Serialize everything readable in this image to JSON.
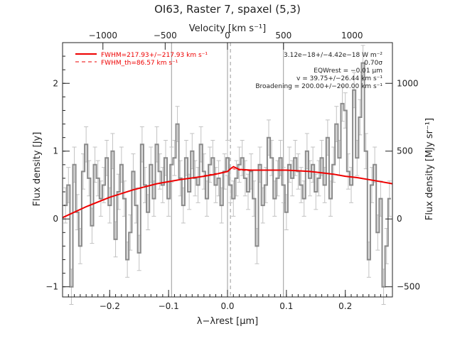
{
  "chart_data": {
    "type": "line",
    "title": "OI63, Raster 7, spaxel (5,3)",
    "xlabel": "λ−λrest [μm]",
    "ylabel": "Flux density [Jy]",
    "top_xlabel": "Velocity [km s⁻¹]",
    "right_ylabel": "Flux density [MJy sr⁻¹]",
    "xlim": [
      -0.28,
      0.28
    ],
    "ylim": [
      -1.15,
      2.6
    ],
    "xticks": [
      -0.2,
      -0.1,
      0.0,
      0.1,
      0.2
    ],
    "xtick_labels": [
      "−0.2",
      "−0.1",
      "0.0",
      "0.1",
      "0.2"
    ],
    "yticks": [
      -1,
      0,
      1,
      2
    ],
    "ytick_labels": [
      "−1",
      "0",
      "1",
      "2"
    ],
    "top_ticks_um": [
      -0.2115,
      -0.1058,
      0.0,
      0.0951
    ],
    "top_tick_labels": [
      "−1000",
      "−500",
      "0",
      "500",
      "1000"
    ],
    "top_tick_label_positions_um": [
      -0.2115,
      -0.1058,
      0.0,
      0.0951,
      0.2115
    ],
    "right_ticks_jy": [
      -1.0,
      0.0,
      1.0,
      2.0
    ],
    "right_tick_labels": [
      "−500",
      "0",
      "500",
      "1000"
    ],
    "vlines_solid_um": [
      -0.095,
      0.0,
      0.095
    ],
    "vline_dashed_um": 0.005,
    "legend": [
      {
        "label": "FWHM=217.93+/−217.93 km s⁻¹",
        "style": "solid"
      },
      {
        "label": "FWHM_th=86.57 km s⁻¹",
        "style": "dashed"
      }
    ],
    "annotations": [
      "3.12e−18+/−4.42e−18 W m⁻²",
      "0.70σ",
      "EQWrest = −0.01 μm",
      "v = 39.75+/−26.44 km s⁻¹",
      "Broadening = 200.00+/−200.00 km s⁻¹"
    ],
    "colors": {
      "data": "#8a8a8a",
      "errors": "#c2c2c2",
      "fit": "#ee0000",
      "axes": "#222222"
    },
    "series": [
      {
        "name": "",
        "style": "histogram",
        "x": [
          -0.275,
          -0.27,
          -0.265,
          -0.26,
          -0.255,
          -0.25,
          -0.245,
          -0.24,
          -0.235,
          -0.23,
          -0.225,
          -0.22,
          -0.215,
          -0.21,
          -0.205,
          -0.2,
          -0.195,
          -0.19,
          -0.185,
          -0.18,
          -0.175,
          -0.17,
          -0.165,
          -0.16,
          -0.155,
          -0.15,
          -0.145,
          -0.14,
          -0.135,
          -0.13,
          -0.125,
          -0.12,
          -0.115,
          -0.11,
          -0.105,
          -0.1,
          -0.095,
          -0.09,
          -0.085,
          -0.08,
          -0.075,
          -0.07,
          -0.065,
          -0.06,
          -0.055,
          -0.05,
          -0.045,
          -0.04,
          -0.035,
          -0.03,
          -0.025,
          -0.02,
          -0.015,
          -0.01,
          -0.005,
          0.0,
          0.005,
          0.01,
          0.015,
          0.02,
          0.025,
          0.03,
          0.035,
          0.04,
          0.045,
          0.05,
          0.055,
          0.06,
          0.065,
          0.07,
          0.075,
          0.08,
          0.085,
          0.09,
          0.095,
          0.1,
          0.105,
          0.11,
          0.115,
          0.12,
          0.125,
          0.13,
          0.135,
          0.14,
          0.145,
          0.15,
          0.155,
          0.16,
          0.165,
          0.17,
          0.175,
          0.18,
          0.185,
          0.19,
          0.195,
          0.2,
          0.205,
          0.21,
          0.215,
          0.22,
          0.225,
          0.23,
          0.235,
          0.24,
          0.245,
          0.25,
          0.255,
          0.26,
          0.265,
          0.27,
          0.275
        ],
        "y": [
          0.2,
          0.5,
          -1.0,
          0.8,
          0.1,
          -0.4,
          0.7,
          1.1,
          0.6,
          -0.1,
          0.8,
          0.6,
          0.3,
          0.5,
          0.9,
          0.2,
          1.0,
          -0.3,
          0.4,
          0.8,
          0.3,
          -0.6,
          -0.2,
          0.7,
          0.2,
          -0.5,
          1.1,
          0.5,
          0.1,
          0.8,
          0.3,
          1.1,
          0.7,
          0.5,
          0.9,
          0.3,
          0.8,
          0.9,
          1.4,
          0.6,
          0.2,
          0.9,
          0.4,
          1.0,
          0.6,
          0.5,
          1.1,
          0.7,
          0.3,
          0.8,
          0.9,
          0.5,
          0.6,
          0.2,
          0.7,
          0.9,
          0.5,
          0.3,
          0.6,
          0.8,
          0.9,
          0.6,
          0.4,
          0.7,
          0.3,
          -0.4,
          0.8,
          0.2,
          0.5,
          1.2,
          0.9,
          0.3,
          0.6,
          0.9,
          0.5,
          0.1,
          0.8,
          0.6,
          0.9,
          0.7,
          0.5,
          0.3,
          1.0,
          0.6,
          0.8,
          0.4,
          0.6,
          0.9,
          0.5,
          1.2,
          0.3,
          0.8,
          1.4,
          0.9,
          1.7,
          1.6,
          0.7,
          0.5,
          1.9,
          0.9,
          1.5,
          2.3,
          1.0,
          -0.6,
          0.5,
          0.8,
          -0.2,
          0.3,
          -1.0,
          -0.4,
          0.3
        ]
      },
      {
        "name": "FWHM=217.93+/−217.93 km s⁻¹",
        "style": "solid",
        "x": [
          -0.28,
          -0.24,
          -0.2,
          -0.16,
          -0.12,
          -0.08,
          -0.04,
          -0.02,
          0.0,
          0.005,
          0.01,
          0.02,
          0.04,
          0.06,
          0.08,
          0.1,
          0.12,
          0.14,
          0.16,
          0.18,
          0.2,
          0.22,
          0.24,
          0.26,
          0.28
        ],
        "y": [
          0.02,
          0.18,
          0.32,
          0.43,
          0.52,
          0.58,
          0.63,
          0.66,
          0.7,
          0.74,
          0.77,
          0.73,
          0.72,
          0.72,
          0.72,
          0.72,
          0.71,
          0.7,
          0.68,
          0.66,
          0.63,
          0.61,
          0.58,
          0.55,
          0.52
        ]
      },
      {
        "name": "FWHM_th=86.57 km s⁻¹",
        "style": "dashed",
        "x": [
          -0.04,
          -0.02,
          0.0,
          0.005,
          0.01,
          0.02,
          0.04
        ],
        "y": [
          0.64,
          0.67,
          0.7,
          0.73,
          0.74,
          0.72,
          0.71
        ]
      }
    ]
  }
}
